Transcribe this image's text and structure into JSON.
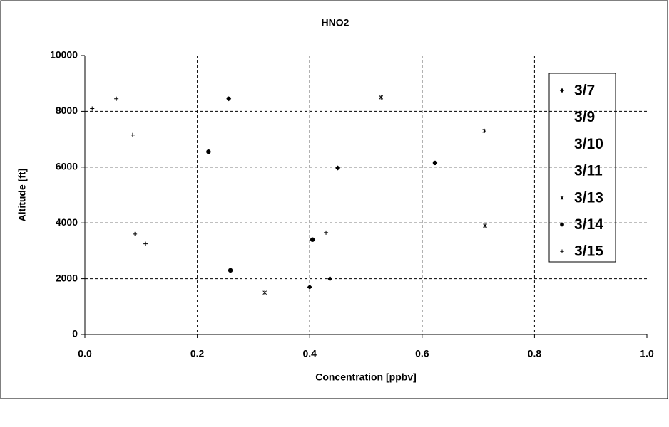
{
  "chart_data": {
    "type": "scatter",
    "title": "HNO2",
    "xlabel": "Concentration [ppbv]",
    "ylabel": "Altitude [ft]",
    "xlim": [
      0,
      1
    ],
    "xticks": [
      {
        "value": 0,
        "label": "0.0"
      },
      0.2,
      0.4,
      0.6,
      0.8,
      {
        "value": 1,
        "label": "1.0"
      }
    ],
    "ylim": [
      0,
      10000
    ],
    "yticks": [
      0,
      2000,
      4000,
      6000,
      8000,
      10000
    ],
    "grid": true,
    "legend": "right",
    "series": [
      {
        "name": "3/7",
        "color": "#000000",
        "marker": "diamond",
        "x": [
          0.256,
          0.45,
          0.4,
          0.436
        ],
        "values": [
          8450,
          5970,
          1700,
          2000
        ]
      },
      {
        "name": "3/9",
        "color": "#000000",
        "x": [],
        "values": []
      },
      {
        "name": "3/10",
        "color": "#000000",
        "x": [],
        "values": []
      },
      {
        "name": "3/11",
        "color": "#000000",
        "x": [],
        "values": []
      },
      {
        "name": "3/13",
        "color": "#000000",
        "marker": "asterisk",
        "x": [
          0.527,
          0.711,
          0.712,
          0.32
        ],
        "values": [
          8500,
          7300,
          3900,
          1500
        ]
      },
      {
        "name": "3/14",
        "color": "#000000",
        "marker": "circle",
        "x": [
          0.22,
          0.259,
          0.405,
          0.623
        ],
        "values": [
          6550,
          2300,
          3400,
          6150
        ]
      },
      {
        "name": "3/15",
        "color": "#000000",
        "marker": "plus",
        "x": [
          0.013,
          0.056,
          0.085,
          0.089,
          0.108,
          0.429
        ],
        "values": [
          8100,
          8450,
          7150,
          3600,
          3250,
          3650
        ]
      }
    ]
  }
}
